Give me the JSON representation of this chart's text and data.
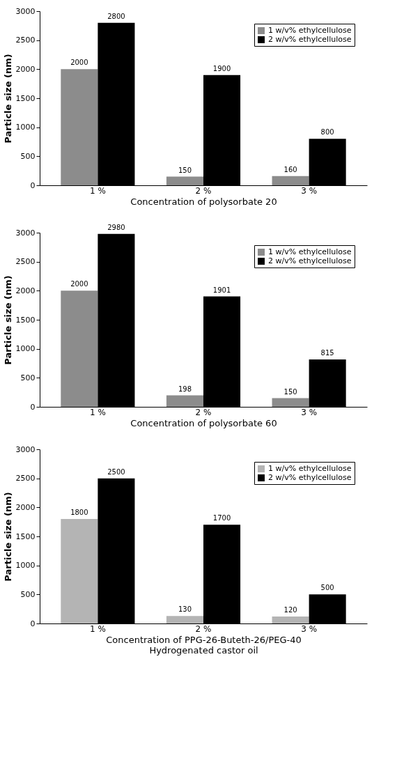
{
  "chart_data": [
    {
      "type": "bar",
      "xlabel": "Concentration of polysorbate 20",
      "ylabel": "Particle size (nm)",
      "categories": [
        "1 %",
        "2 %",
        "3 %"
      ],
      "series": [
        {
          "name": "1 w/v% ethylcellulose",
          "color": "#8c8c8c",
          "values": [
            2000,
            150,
            160
          ]
        },
        {
          "name": "2 w/v% ethylcellulose",
          "color": "#000000",
          "values": [
            2800,
            1900,
            800
          ]
        }
      ],
      "ylim": [
        0,
        3000
      ],
      "yticks": [
        0,
        500,
        1000,
        1500,
        2000,
        2500,
        3000
      ],
      "data_labels": true,
      "legend": "top right",
      "grid": false
    },
    {
      "type": "bar",
      "xlabel": "Concentration of polysorbate 60",
      "ylabel": "Particle size (nm)",
      "categories": [
        "1 %",
        "2 %",
        "3 %"
      ],
      "series": [
        {
          "name": "1 w/v% ethylcellulose",
          "color": "#8c8c8c",
          "values": [
            2000,
            198,
            150
          ]
        },
        {
          "name": "2 w/v% ethylcellulose",
          "color": "#000000",
          "values": [
            2980,
            1901,
            815
          ]
        }
      ],
      "ylim": [
        0,
        3000
      ],
      "yticks": [
        0,
        500,
        1000,
        1500,
        2000,
        2500,
        3000
      ],
      "data_labels": true,
      "legend": "top right",
      "grid": false
    },
    {
      "type": "bar",
      "xlabel": "Concentration of PPG-26-Buteth-26/PEG-40\nHydrogenated castor oil",
      "ylabel": "Particle size (nm)",
      "categories": [
        "1 %",
        "2 %",
        "3 %"
      ],
      "series": [
        {
          "name": "1 w/v% ethylcellulose",
          "color": "#b4b4b4",
          "values": [
            1800,
            130,
            120
          ]
        },
        {
          "name": "2 w/v% ethylcellulose",
          "color": "#000000",
          "values": [
            2500,
            1700,
            500
          ]
        }
      ],
      "ylim": [
        0,
        3000
      ],
      "yticks": [
        0,
        500,
        1000,
        1500,
        2000,
        2500,
        3000
      ],
      "data_labels": true,
      "legend": "top right",
      "grid": false
    }
  ]
}
